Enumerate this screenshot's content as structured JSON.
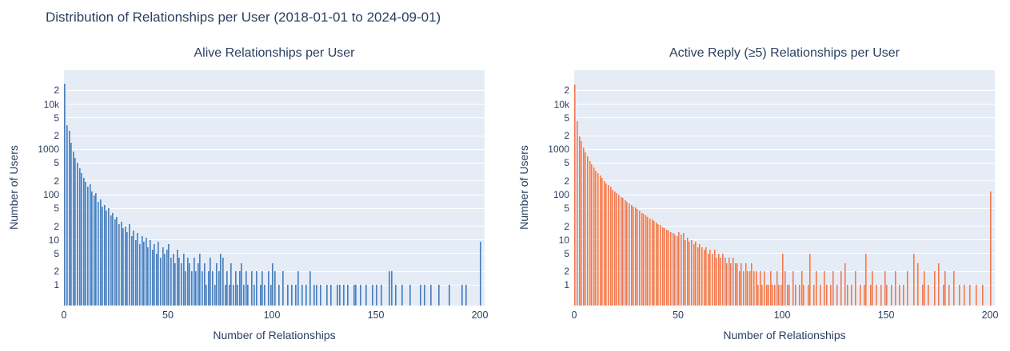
{
  "figure": {
    "title": "Distribution of Relationships per User (2018-01-01 to 2024-09-01)"
  },
  "colors": {
    "text": "#2a3f5f",
    "plot_bg": "#e5ecf6",
    "grid": "#ffffff",
    "blue_fill": "#79a5d6",
    "blue_edge": "#4d7fba",
    "orange_fill": "#f9a886",
    "orange_edge": "#f07850"
  },
  "y_axis": {
    "title": "Number of Users",
    "scale": "log",
    "tick_values": [
      1,
      2,
      5,
      10,
      20,
      50,
      100,
      200,
      500,
      1000,
      2000,
      5000,
      10000,
      20000
    ],
    "tick_labels": [
      "1",
      "2",
      "5",
      "10",
      "2",
      "5",
      "100",
      "2",
      "5",
      "1000",
      "2",
      "5",
      "10k",
      "2"
    ]
  },
  "x_axis": {
    "title": "Number of Relationships",
    "tick_values": [
      0,
      50,
      100,
      150,
      200
    ],
    "tick_labels": [
      "0",
      "50",
      "100",
      "150",
      "200"
    ]
  },
  "chart_data": [
    {
      "type": "bar",
      "title": "Alive Relationships per User",
      "xlabel": "Number of Relationships",
      "ylabel": "Number of Users",
      "yscale": "log",
      "xlim": [
        0,
        202
      ],
      "ylim_log10": [
        -0.45,
        4.75
      ],
      "grid": true,
      "legend": false,
      "bar_color": "#79a5d6",
      "bar_edge_color": "#4d7fba",
      "bin_start": 0,
      "bin_size": 1,
      "counts": [
        28000,
        3400,
        2600,
        1400,
        900,
        650,
        500,
        380,
        300,
        230,
        190,
        150,
        170,
        120,
        95,
        110,
        70,
        80,
        55,
        60,
        45,
        50,
        35,
        40,
        28,
        32,
        22,
        25,
        18,
        20,
        15,
        22,
        12,
        16,
        10,
        14,
        8,
        12,
        9,
        11,
        7,
        10,
        6,
        8,
        5,
        9,
        4,
        7,
        5,
        6,
        8,
        4,
        5,
        3,
        6,
        4,
        3,
        5,
        2,
        4,
        3,
        2,
        4,
        2,
        3,
        5,
        2,
        3,
        1,
        2,
        4,
        2,
        1,
        3,
        2,
        5,
        4,
        1,
        2,
        1,
        3,
        1,
        2,
        1,
        2,
        3,
        1,
        2,
        1,
        0,
        2,
        1,
        2,
        0,
        1,
        2,
        1,
        0,
        2,
        1,
        3,
        2,
        0,
        1,
        0,
        2,
        0,
        1,
        0,
        1,
        0,
        1,
        2,
        0,
        1,
        0,
        1,
        0,
        2,
        0,
        1,
        1,
        0,
        1,
        0,
        0,
        1,
        0,
        1,
        0,
        0,
        1,
        1,
        0,
        1,
        0,
        1,
        0,
        0,
        1,
        1,
        0,
        1,
        0,
        0,
        1,
        0,
        0,
        1,
        0,
        1,
        0,
        1,
        0,
        0,
        0,
        2,
        2,
        0,
        1,
        0,
        0,
        1,
        0,
        0,
        0,
        1,
        0,
        0,
        0,
        0,
        1,
        0,
        1,
        0,
        0,
        1,
        0,
        0,
        0,
        1,
        0,
        0,
        0,
        0,
        1,
        0,
        0,
        0,
        0,
        0,
        1,
        0,
        1,
        0,
        0,
        0,
        0,
        0,
        0,
        9
      ]
    },
    {
      "type": "bar",
      "title": "Active Reply (≥5) Relationships per User",
      "xlabel": "Number of Relationships",
      "ylabel": "Number of Users",
      "yscale": "log",
      "xlim": [
        0,
        202
      ],
      "ylim_log10": [
        -0.45,
        4.75
      ],
      "grid": true,
      "legend": false,
      "bar_color": "#f9a886",
      "bar_edge_color": "#f07850",
      "bin_start": 0,
      "bin_size": 1,
      "counts": [
        27000,
        4200,
        1900,
        1500,
        1100,
        850,
        700,
        560,
        470,
        400,
        340,
        300,
        260,
        230,
        200,
        180,
        160,
        150,
        130,
        120,
        110,
        100,
        90,
        85,
        75,
        70,
        65,
        60,
        55,
        52,
        48,
        45,
        40,
        38,
        35,
        32,
        30,
        28,
        26,
        24,
        22,
        21,
        19,
        18,
        17,
        16,
        15,
        14,
        13,
        12,
        15,
        13,
        14,
        10,
        11,
        9,
        10,
        8,
        9,
        7,
        8,
        7,
        6,
        7,
        5,
        6,
        5,
        6,
        4,
        5,
        4,
        5,
        4,
        3,
        4,
        3,
        4,
        3,
        3,
        2,
        3,
        2,
        3,
        2,
        2,
        3,
        2,
        2,
        1,
        2,
        1,
        2,
        1,
        1,
        2,
        1,
        1,
        2,
        1,
        1,
        5,
        2,
        1,
        1,
        0,
        2,
        1,
        0,
        1,
        2,
        1,
        0,
        1,
        5,
        0,
        1,
        2,
        0,
        1,
        0,
        2,
        1,
        0,
        1,
        2,
        0,
        1,
        0,
        2,
        0,
        3,
        1,
        0,
        1,
        0,
        2,
        0,
        1,
        0,
        1,
        5,
        0,
        1,
        2,
        0,
        1,
        0,
        1,
        0,
        2,
        1,
        0,
        1,
        0,
        2,
        0,
        1,
        0,
        1,
        0,
        2,
        0,
        0,
        5,
        0,
        3,
        0,
        1,
        2,
        0,
        1,
        0,
        0,
        2,
        0,
        3,
        0,
        1,
        2,
        0,
        1,
        0,
        2,
        0,
        0,
        1,
        0,
        1,
        0,
        0,
        1,
        0,
        0,
        1,
        0,
        0,
        1,
        0,
        0,
        0,
        120
      ]
    }
  ]
}
